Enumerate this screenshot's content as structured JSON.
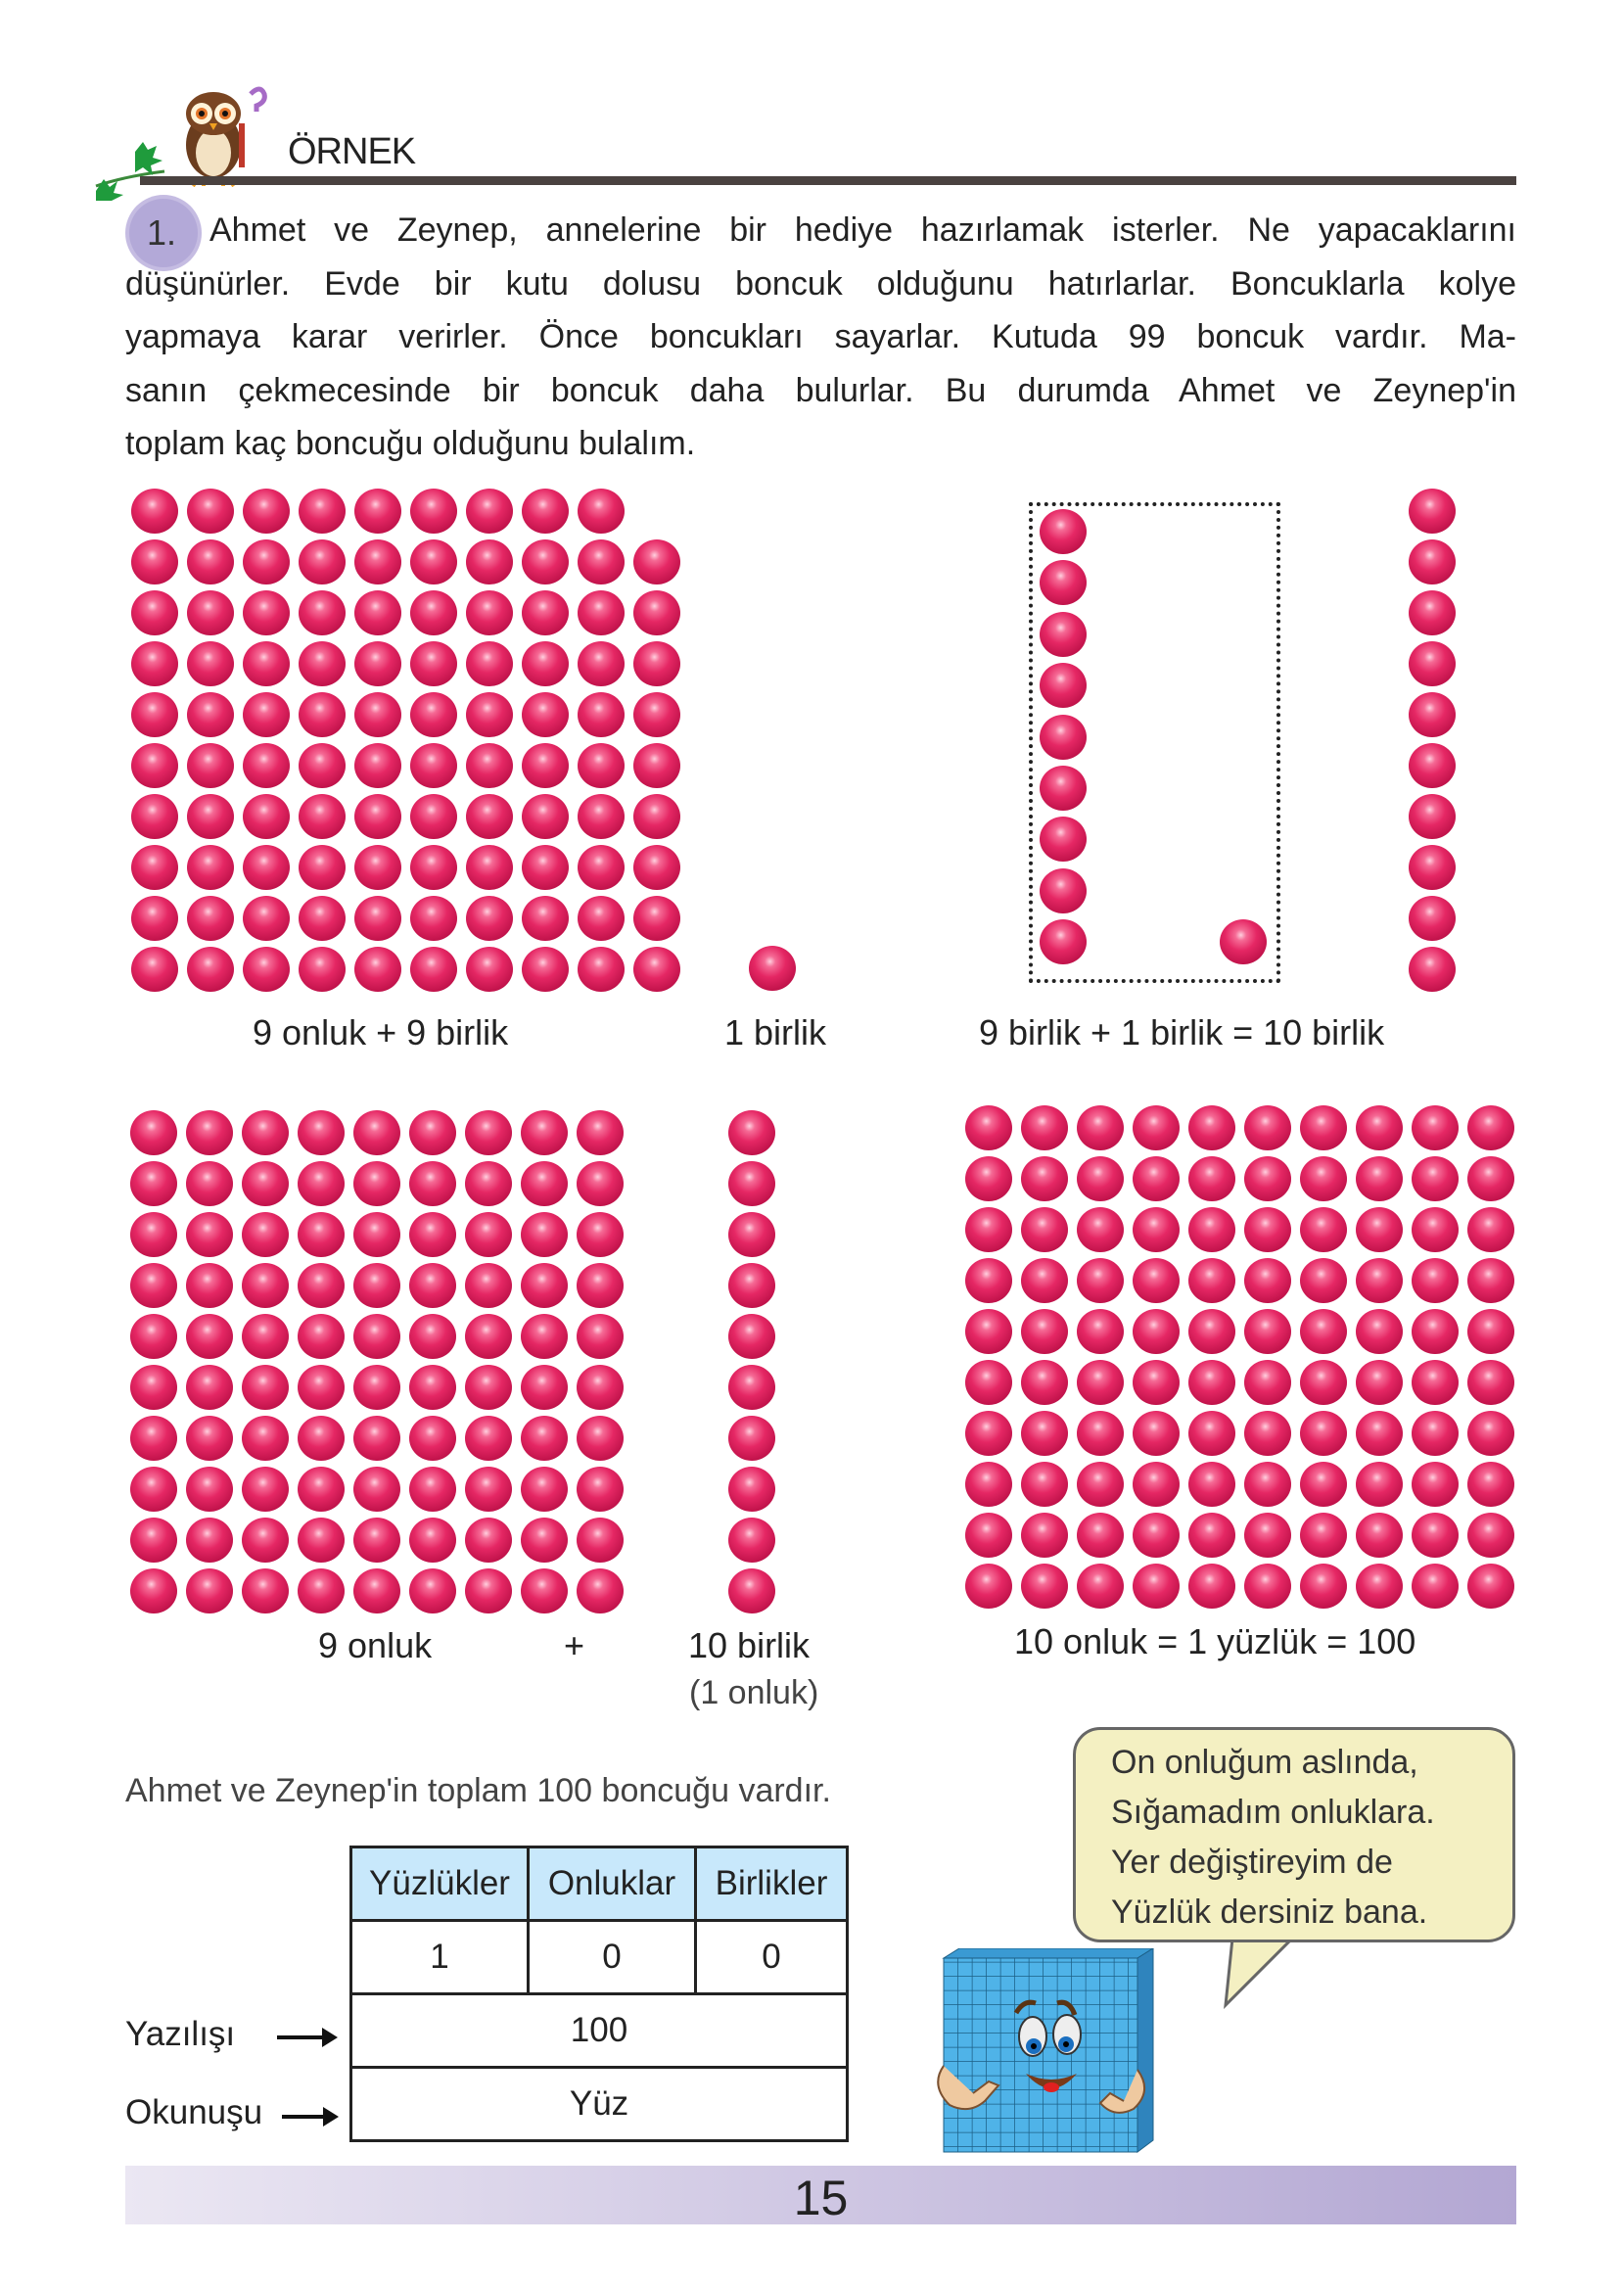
{
  "header": {
    "title": "ÖRNEK",
    "icon": "owl-icon"
  },
  "problem": {
    "number": "1.",
    "lines": [
      "Ahmet ve Zeynep, annelerine bir hediye hazırlamak isterler. Ne yapacaklarını",
      "düşünürler. Evde bir kutu dolusu boncuk olduğunu hatırlarlar. Boncuklarla kolye",
      "yapmaya karar verirler. Önce boncukları sayarlar. Kutuda 99 boncuk vardır. Ma-",
      "sanın çekmecesinde bir boncuk daha bulurlar. Bu durumda Ahmet ve Zeynep'in",
      "toplam kaç boncuğu olduğunu bulalım."
    ]
  },
  "colors": {
    "bead": "#e52764",
    "table_header": "#c8e8fb",
    "bubble": "#f4f0c2",
    "footer_end": "#b3a7d3",
    "rule": "#4a4240"
  },
  "figures": {
    "row1": {
      "grid_count": 99,
      "label_left": "9 onluk + 9 birlik",
      "single_count": 1,
      "label_single": "1 birlik",
      "label_right": "9 birlik + 1 birlik = 10 birlik"
    },
    "row2": {
      "label_onluk": "9 onluk",
      "plus": "+",
      "label_birlik": "10 birlik",
      "label_birlik_sub": "(1 onluk)",
      "label_right": "10 onluk = 1 yüzlük = 100"
    }
  },
  "summary": "Ahmet ve Zeynep'in toplam 100 boncuğu  vardır.",
  "table": {
    "headers": [
      "Yüzlükler",
      "Onluklar",
      "Birlikler"
    ],
    "digits": [
      "1",
      "0",
      "0"
    ],
    "written_label": "Yazılışı",
    "written_value": "100",
    "read_label": "Okunuşu",
    "read_value": "Yüz"
  },
  "speech": {
    "lines": [
      "On onluğum aslında,",
      "Sığamadım onluklara.",
      "Yer değiştireyim de",
      "Yüzlük dersiniz bana."
    ]
  },
  "footer": {
    "page_number": "15"
  }
}
